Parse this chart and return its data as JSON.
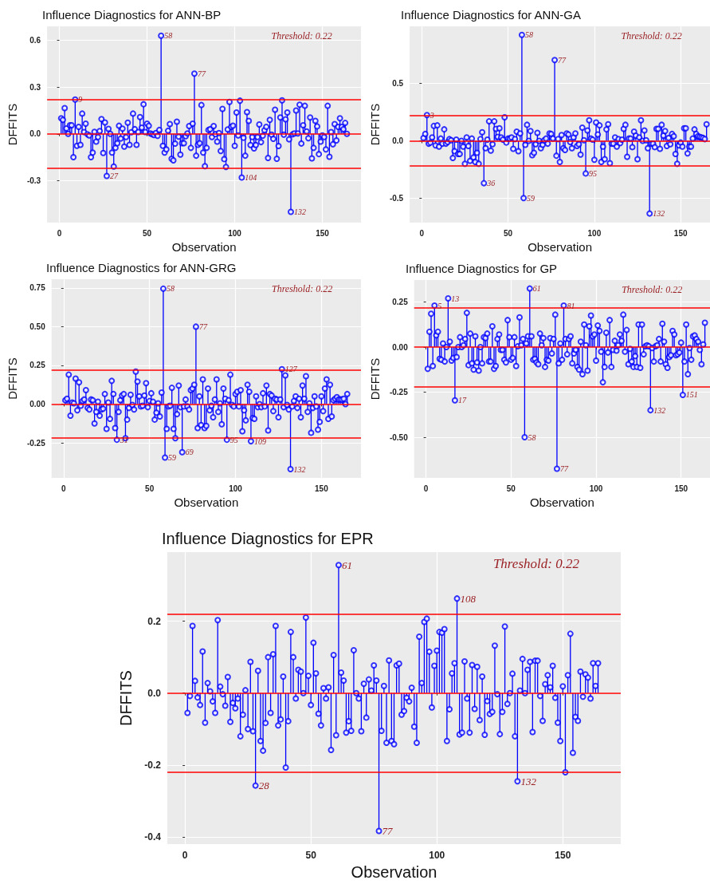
{
  "chart_data": [
    {
      "type": "lollipop",
      "title": "Influence Diagnostics for ANN-BP",
      "xlabel": "Observation",
      "ylabel": "DFFITS",
      "color": "#0000ff",
      "marker": "circle",
      "grid": true,
      "xlim": [
        -7,
        172
      ],
      "ylim": [
        -0.57,
        0.69
      ],
      "xticks": [
        0,
        50,
        100,
        150
      ],
      "yticks": [
        -0.3,
        {
          "value": 0,
          "label": "0.0"
        },
        0.3,
        0.6
      ],
      "ref_lines": [
        {
          "axis": "y",
          "value": 0.22,
          "color": "#ff0000"
        },
        {
          "axis": "y",
          "value": 0,
          "color": "#ff0000"
        },
        {
          "axis": "y",
          "value": -0.22,
          "color": "#ff0000"
        }
      ],
      "annotations": [
        "Threshold: 0.22",
        {
          "text": "58",
          "x": 58,
          "y": 0.63
        },
        {
          "text": "77",
          "x": 77,
          "y": 0.387
        },
        {
          "text": "9",
          "x": 9,
          "y": 0.22
        },
        {
          "text": "27",
          "x": 27,
          "y": -0.27
        },
        {
          "text": "104",
          "x": 104,
          "y": -0.28
        },
        {
          "text": "132",
          "x": 132,
          "y": -0.5
        }
      ],
      "x": [
        1,
        2,
        3,
        4,
        5,
        6,
        7,
        8,
        9,
        10,
        11,
        12,
        13,
        14,
        15,
        16,
        17,
        18,
        19,
        20,
        21,
        22,
        23,
        24,
        25,
        26,
        27,
        28,
        29,
        30,
        31,
        32,
        33,
        34,
        35,
        36,
        37,
        38,
        39,
        40,
        41,
        42,
        43,
        44,
        45,
        46,
        47,
        48,
        49,
        50,
        51,
        52,
        53,
        54,
        55,
        56,
        57,
        58,
        59,
        60,
        61,
        62,
        63,
        64,
        65,
        66,
        67,
        68,
        69,
        70,
        71,
        72,
        73,
        74,
        75,
        76,
        77,
        78,
        79,
        80,
        81,
        82,
        83,
        84,
        85,
        86,
        87,
        88,
        89,
        90,
        91,
        92,
        93,
        94,
        95,
        96,
        97,
        98,
        99,
        100,
        101,
        102,
        103,
        104,
        105,
        106,
        107,
        108,
        109,
        110,
        111,
        112,
        113,
        114,
        115,
        116,
        117,
        118,
        119,
        120,
        121,
        122,
        123,
        124,
        125,
        126,
        127,
        128,
        129,
        130,
        131,
        132,
        133,
        134,
        135,
        136,
        137,
        138,
        139,
        140,
        141,
        142,
        143,
        144,
        145,
        146,
        147,
        148,
        149,
        150,
        151,
        152,
        153,
        154,
        155,
        156,
        157,
        158,
        159,
        160,
        161,
        162,
        163,
        164
      ],
      "values": [
        0.1,
        0.09,
        0.165,
        0.035,
        0.0,
        0.055,
        0.055,
        -0.15,
        0.22,
        -0.077,
        0.045,
        -0.07,
        0.13,
        0.012,
        0.065,
        -0.003,
        -0.01,
        -0.15,
        -0.12,
        0.013,
        -0.05,
        -0.02,
        0.018,
        0.095,
        -0.123,
        0.073,
        -0.27,
        0.032,
        0.0,
        -0.12,
        -0.21,
        -0.09,
        -0.06,
        0.052,
        -0.03,
        0.033,
        -0.082,
        -0.02,
        0.072,
        -0.07,
        0.01,
        0.13,
        0.03,
        -0.07,
        0.012,
        0.108,
        0.04,
        0.19,
        0.012,
        0.065,
        0.052,
        0.002,
        -0.003,
        -0.008,
        0.005,
        -0.013,
        0.025,
        0.63,
        -0.077,
        -0.12,
        -0.1,
        0.02,
        0.063,
        -0.16,
        -0.17,
        -0.063,
        0.078,
        -0.018,
        -0.133,
        -0.06,
        -0.06,
        -0.015,
        0.003,
        0.05,
        -0.09,
        0.065,
        0.387,
        -0.14,
        -0.07,
        -0.06,
        0.185,
        -0.12,
        -0.207,
        -0.09,
        0.025,
        0.03,
        -0.02,
        0.05,
        -0.002,
        -0.05,
        0.005,
        -0.11,
        0.16,
        -0.162,
        -0.212,
        0.028,
        0.205,
        0.045,
        0.053,
        -0.077,
        0.137,
        -0.01,
        0.213,
        -0.28,
        -0.025,
        -0.14,
        0.14,
        0.083,
        -0.072,
        -0.02,
        -0.093,
        -0.072,
        -0.02,
        0.06,
        -0.053,
        -0.012,
        0.023,
        0.045,
        -0.155,
        0.09,
        -0.005,
        -0.032,
        0.155,
        -0.16,
        -0.078,
        0.105,
        0.215,
        -0.005,
        0.093,
        0.137,
        -0.035,
        -0.5,
        -0.003,
        0.003,
        0.15,
        0.003,
        0.187,
        -0.062,
        0.055,
        0.18,
        0.015,
        -0.028,
        0.105,
        -0.157,
        -0.09,
        0.083,
        0.048,
        -0.13,
        -0.05,
        -0.01,
        -0.02,
        -0.1,
        0.18,
        -0.147,
        0.012,
        -0.067,
        0.063,
        -0.042,
        0.045,
        0.1,
        0.045,
        0.03,
        0.07,
        0.0
      ]
    },
    {
      "type": "lollipop",
      "title": "Influence Diagnostics for ANN-GA",
      "xlabel": "Observation",
      "ylabel": "DFFITS",
      "color": "#0000ff",
      "marker": "circle",
      "grid": true,
      "xlim": [
        -7,
        167
      ],
      "ylim": [
        -0.715,
        1.0
      ],
      "xticks": [
        0,
        50,
        100,
        150
      ],
      "yticks": [
        -0.5,
        {
          "value": 0,
          "label": "0.0"
        },
        0.5
      ],
      "ref_lines": [
        {
          "axis": "y",
          "value": 0.22,
          "color": "#ff0000"
        },
        {
          "axis": "y",
          "value": 0,
          "color": "#ff0000"
        },
        {
          "axis": "y",
          "value": -0.22,
          "color": "#ff0000"
        }
      ],
      "annotations": [
        "Threshold: 0.22",
        {
          "text": "58",
          "x": 58,
          "y": 0.925
        },
        {
          "text": "77",
          "x": 77,
          "y": 0.705
        },
        {
          "text": "3",
          "x": 3,
          "y": 0.225
        },
        {
          "text": "36",
          "x": 36,
          "y": -0.37
        },
        {
          "text": "59",
          "x": 59,
          "y": -0.5
        },
        {
          "text": "95",
          "x": 95,
          "y": -0.285
        },
        {
          "text": "132",
          "x": 132,
          "y": -0.635
        }
      ],
      "x": [
        1,
        2,
        3,
        4,
        5,
        6,
        7,
        8,
        9,
        10,
        11,
        12,
        13,
        14,
        15,
        16,
        17,
        18,
        19,
        20,
        21,
        22,
        23,
        24,
        25,
        26,
        27,
        28,
        29,
        30,
        31,
        32,
        33,
        34,
        35,
        36,
        37,
        38,
        39,
        40,
        41,
        42,
        43,
        44,
        45,
        46,
        47,
        48,
        49,
        50,
        51,
        52,
        53,
        54,
        55,
        56,
        57,
        58,
        59,
        60,
        61,
        62,
        63,
        64,
        65,
        66,
        67,
        68,
        69,
        70,
        71,
        72,
        73,
        74,
        75,
        76,
        77,
        78,
        79,
        80,
        81,
        82,
        83,
        84,
        85,
        86,
        87,
        88,
        89,
        90,
        91,
        92,
        93,
        94,
        95,
        96,
        97,
        98,
        99,
        100,
        101,
        102,
        103,
        104,
        105,
        106,
        107,
        108,
        109,
        110,
        111,
        112,
        113,
        114,
        115,
        116,
        117,
        118,
        119,
        120,
        121,
        122,
        123,
        124,
        125,
        126,
        127,
        128,
        129,
        130,
        131,
        132,
        133,
        134,
        135,
        136,
        137,
        138,
        139,
        140,
        141,
        142,
        143,
        144,
        145,
        146,
        147,
        148,
        149,
        150,
        151,
        152,
        153,
        154,
        155,
        156,
        157,
        158,
        159,
        160,
        161,
        162,
        163,
        164,
        165
      ],
      "values": [
        0.025,
        0.06,
        0.225,
        -0.025,
        -0.015,
        0.03,
        0.13,
        -0.04,
        0.135,
        -0.05,
        0.02,
        -0.025,
        0.1,
        -0.025,
        -0.01,
        0.015,
        0.005,
        -0.15,
        -0.09,
        0.01,
        -0.115,
        -0.115,
        0.0,
        -0.05,
        -0.2,
        0.03,
        -0.045,
        -0.175,
        0.02,
        -0.145,
        -0.185,
        -0.105,
        -0.2,
        0.015,
        0.075,
        -0.37,
        -0.065,
        0.01,
        0.17,
        -0.085,
        -0.03,
        0.17,
        0.105,
        0.035,
        0.11,
        0.03,
        0.01,
        0.205,
        -0.015,
        0.02,
        0.02,
        0.03,
        -0.07,
        0.015,
        0.08,
        -0.09,
        0.065,
        0.925,
        -0.5,
        -0.035,
        0.14,
        0.0,
        0.085,
        -0.125,
        -0.105,
        -0.03,
        0.07,
        0.0,
        -0.065,
        -0.035,
        0.005,
        0.02,
        -0.025,
        0.065,
        0.06,
        0.02,
        0.705,
        -0.13,
        0.015,
        -0.185,
        0.05,
        -0.065,
        -0.08,
        0.065,
        0.055,
        -0.01,
        -0.065,
        0.03,
        0.065,
        -0.045,
        -0.03,
        -0.12,
        0.115,
        0.005,
        -0.285,
        0.09,
        0.18,
        0.02,
        0.01,
        -0.165,
        0.16,
        0.055,
        0.135,
        -0.185,
        -0.05,
        -0.16,
        0.1,
        0.145,
        -0.195,
        -0.025,
        -0.025,
        0.03,
        -0.05,
        0.015,
        -0.02,
        0.01,
        0.105,
        0.14,
        -0.14,
        0.02,
        0.02,
        -0.055,
        0.08,
        0.045,
        -0.16,
        0.03,
        0.18,
        0.0,
        0.09,
        0.005,
        -0.065,
        -0.635,
        -0.025,
        -0.025,
        -0.055,
        0.105,
        0.105,
        -0.07,
        0.14,
        0.045,
        0.085,
        -0.045,
        0.025,
        -0.03,
        0.06,
        0.04,
        -0.115,
        -0.2,
        -0.04,
        -0.015,
        -0.05,
        0.11,
        0.11,
        -0.11,
        -0.05,
        -0.05,
        0.02,
        0.1,
        0.06,
        0.04,
        0.035,
        0.03,
        0.025,
        0.015,
        0.145
      ]
    },
    {
      "type": "lollipop",
      "title": "Influence Diagnostics for ANN-GRG",
      "xlabel": "Observation",
      "ylabel": "DFFITS",
      "color": "#0000ff",
      "marker": "circle",
      "grid": true,
      "xlim": [
        -7,
        173
      ],
      "ylim": [
        -0.477,
        0.806
      ],
      "xticks": [
        0,
        50,
        100,
        150
      ],
      "yticks": [
        {
          "value": -0.25,
          "label": "-0.25"
        },
        {
          "value": 0,
          "label": "0.00"
        },
        {
          "value": 0.25,
          "label": "0.25"
        },
        {
          "value": 0.5,
          "label": "0.50"
        },
        {
          "value": 0.75,
          "label": "0.75"
        }
      ],
      "ref_lines": [
        {
          "axis": "y",
          "value": 0.22,
          "color": "#ff0000"
        },
        {
          "axis": "y",
          "value": 0,
          "color": "#ff0000"
        },
        {
          "axis": "y",
          "value": -0.22,
          "color": "#ff0000"
        }
      ],
      "annotations": [
        "Threshold: 0.22",
        {
          "text": "58",
          "x": 58,
          "y": 0.745
        },
        {
          "text": "77",
          "x": 77,
          "y": 0.5
        },
        {
          "text": "127",
          "x": 127,
          "y": 0.225
        },
        {
          "text": "31",
          "x": 31,
          "y": -0.23
        },
        {
          "text": "59",
          "x": 59,
          "y": -0.345
        },
        {
          "text": "69",
          "x": 69,
          "y": -0.31
        },
        {
          "text": "95",
          "x": 95,
          "y": -0.23
        },
        {
          "text": "109",
          "x": 109,
          "y": -0.24
        },
        {
          "text": "132",
          "x": 132,
          "y": -0.42
        }
      ],
      "x": [
        1,
        2,
        3,
        4,
        5,
        6,
        7,
        8,
        9,
        10,
        11,
        12,
        13,
        14,
        15,
        16,
        17,
        18,
        19,
        20,
        21,
        22,
        23,
        24,
        25,
        26,
        27,
        28,
        29,
        30,
        31,
        32,
        33,
        34,
        35,
        36,
        37,
        38,
        39,
        40,
        41,
        42,
        43,
        44,
        45,
        46,
        47,
        48,
        49,
        50,
        51,
        52,
        53,
        54,
        55,
        56,
        57,
        58,
        59,
        60,
        61,
        62,
        63,
        64,
        65,
        66,
        67,
        68,
        69,
        70,
        71,
        72,
        73,
        74,
        75,
        76,
        77,
        78,
        79,
        80,
        81,
        82,
        83,
        84,
        85,
        86,
        87,
        88,
        89,
        90,
        91,
        92,
        93,
        94,
        95,
        96,
        97,
        98,
        99,
        100,
        101,
        102,
        103,
        104,
        105,
        106,
        107,
        108,
        109,
        110,
        111,
        112,
        113,
        114,
        115,
        116,
        117,
        118,
        119,
        120,
        121,
        122,
        123,
        124,
        125,
        126,
        127,
        128,
        129,
        130,
        131,
        132,
        133,
        134,
        135,
        136,
        137,
        138,
        139,
        140,
        141,
        142,
        143,
        144,
        145,
        146,
        147,
        148,
        149,
        150,
        151,
        152,
        153,
        154,
        155,
        156,
        157,
        158,
        159,
        160,
        161,
        162,
        163,
        164,
        165
      ],
      "values": [
        0.025,
        0.035,
        0.19,
        -0.075,
        0.01,
        0.005,
        0.165,
        -0.04,
        0.14,
        -0.01,
        0.02,
        0.03,
        0.09,
        -0.025,
        -0.035,
        0.03,
        0.025,
        -0.125,
        -0.05,
        0.015,
        -0.075,
        -0.035,
        -0.03,
        0.065,
        -0.16,
        0.01,
        -0.095,
        0.15,
        0.065,
        -0.155,
        -0.23,
        -0.05,
        0.025,
        0.055,
        0.065,
        -0.22,
        -0.1,
        -0.025,
        0.06,
        -0.005,
        -0.035,
        0.21,
        0.145,
        0.05,
        -0.015,
        -0.01,
        0.055,
        0.135,
        -0.02,
        0.02,
        0.07,
        0.015,
        -0.1,
        -0.055,
        0.005,
        -0.08,
        0.075,
        0.745,
        -0.345,
        -0.16,
        -0.015,
        -0.01,
        0.105,
        -0.16,
        -0.22,
        -0.065,
        0.12,
        -0.02,
        -0.31,
        -0.015,
        0.03,
        -0.015,
        -0.035,
        0.09,
        0.1,
        0.125,
        0.5,
        -0.155,
        0.05,
        -0.135,
        0.16,
        -0.155,
        -0.14,
        0.1,
        -0.04,
        -0.01,
        -0.085,
        0.03,
        0.16,
        -0.05,
        0.005,
        -0.13,
        0.1,
        0.035,
        -0.23,
        0.025,
        0.19,
        -0.005,
        -0.015,
        0.065,
        0.08,
        -0.015,
        0.09,
        -0.175,
        -0.04,
        -0.105,
        0.125,
        0.08,
        -0.24,
        -0.09,
        -0.095,
        0.05,
        -0.02,
        0.0,
        -0.02,
        0.07,
        -0.015,
        0.12,
        -0.17,
        0.065,
        0.055,
        -0.045,
        0.035,
        0.03,
        -0.085,
        0.03,
        0.225,
        -0.02,
        0.185,
        -0.005,
        -0.035,
        -0.42,
        -0.015,
        0.02,
        0.05,
        -0.025,
        0.035,
        -0.085,
        0.12,
        0.035,
        0.18,
        -0.05,
        0.005,
        -0.185,
        -0.025,
        0.05,
        -0.015,
        -0.165,
        -0.115,
        0.05,
        -0.045,
        0.1,
        0.16,
        -0.095,
        0.125,
        -0.08,
        0.025,
        0.035,
        0.045,
        0.03,
        0.03,
        0.03,
        0.035,
        0.0,
        0.065
      ]
    },
    {
      "type": "lollipop",
      "title": "Influence Diagnostics for GP",
      "xlabel": "Observation",
      "ylabel": "DFFITS",
      "color": "#0000ff",
      "marker": "circle",
      "grid": true,
      "xlim": [
        -7,
        167
      ],
      "ylim": [
        -0.726,
        0.372
      ],
      "xticks": [
        0,
        50,
        100,
        150
      ],
      "yticks": [
        {
          "value": -0.5,
          "label": "-0.50"
        },
        {
          "value": -0.25,
          "label": "-0.25"
        },
        {
          "value": 0,
          "label": "0.00"
        },
        {
          "value": 0.25,
          "label": "0.25"
        }
      ],
      "ref_lines": [
        {
          "axis": "y",
          "value": 0.22,
          "color": "#ff0000"
        },
        {
          "axis": "y",
          "value": 0,
          "color": "#ff0000"
        },
        {
          "axis": "y",
          "value": -0.22,
          "color": "#ff0000"
        }
      ],
      "annotations": [
        "Threshold: 0.22",
        {
          "text": "61",
          "x": 61,
          "y": 0.325
        },
        {
          "text": "13",
          "x": 13,
          "y": 0.27
        },
        {
          "text": "5",
          "x": 5,
          "y": 0.23
        },
        {
          "text": "81",
          "x": 81,
          "y": 0.23
        },
        {
          "text": "17",
          "x": 17,
          "y": -0.295
        },
        {
          "text": "58",
          "x": 58,
          "y": -0.5
        },
        {
          "text": "77",
          "x": 77,
          "y": -0.675
        },
        {
          "text": "132",
          "x": 132,
          "y": -0.35
        },
        {
          "text": "151",
          "x": 151,
          "y": -0.265
        }
      ],
      "x": [
        1,
        2,
        3,
        4,
        5,
        6,
        7,
        8,
        9,
        10,
        11,
        12,
        13,
        14,
        15,
        16,
        17,
        18,
        19,
        20,
        21,
        22,
        23,
        24,
        25,
        26,
        27,
        28,
        29,
        30,
        31,
        32,
        33,
        34,
        35,
        36,
        37,
        38,
        39,
        40,
        41,
        42,
        43,
        44,
        45,
        46,
        47,
        48,
        49,
        50,
        51,
        52,
        53,
        54,
        55,
        56,
        57,
        58,
        59,
        60,
        61,
        62,
        63,
        64,
        65,
        66,
        67,
        68,
        69,
        70,
        71,
        72,
        73,
        74,
        75,
        76,
        77,
        78,
        79,
        80,
        81,
        82,
        83,
        84,
        85,
        86,
        87,
        88,
        89,
        90,
        91,
        92,
        93,
        94,
        95,
        96,
        97,
        98,
        99,
        100,
        101,
        102,
        103,
        104,
        105,
        106,
        107,
        108,
        109,
        110,
        111,
        112,
        113,
        114,
        115,
        116,
        117,
        118,
        119,
        120,
        121,
        122,
        123,
        124,
        125,
        126,
        127,
        128,
        129,
        130,
        131,
        132,
        133,
        134,
        135,
        136,
        137,
        138,
        139,
        140,
        141,
        142,
        143,
        144,
        145,
        146,
        147,
        148,
        149,
        150,
        151,
        152,
        153,
        154,
        155,
        156,
        157,
        158,
        159,
        160,
        161,
        162,
        163,
        164
      ],
      "values": [
        -0.12,
        0.085,
        0.185,
        -0.105,
        0.23,
        0.065,
        0.085,
        -0.065,
        -0.07,
        0.02,
        -0.08,
        0.0,
        0.27,
        0.03,
        -0.075,
        -0.06,
        -0.295,
        -0.055,
        0.0,
        0.055,
        0.0,
        0.01,
        0.045,
        0.19,
        -0.1,
        0.075,
        -0.09,
        -0.125,
        0.06,
        -0.085,
        -0.13,
        0.0,
        -0.09,
        0.055,
        0.05,
        0.075,
        -0.08,
        -0.08,
        0.115,
        -0.12,
        -0.105,
        0.045,
        0.07,
        -0.015,
        -0.015,
        -0.07,
        -0.085,
        0.15,
        0.055,
        -0.07,
        -0.06,
        0.055,
        -0.105,
        0.005,
        0.165,
        0.01,
        0.045,
        -0.5,
        0.02,
        0.06,
        0.325,
        0.06,
        -0.07,
        -0.065,
        -0.085,
        -0.095,
        0.075,
        0.01,
        0.05,
        -0.11,
        -0.07,
        -0.075,
        0.05,
        -0.035,
        0.045,
        0.18,
        -0.675,
        -0.09,
        0.02,
        -0.07,
        0.23,
        0.045,
        -0.04,
        0.045,
        0.06,
        -0.09,
        -0.035,
        -0.015,
        -0.11,
        -0.125,
        0.03,
        -0.15,
        0.125,
        0.01,
        -0.13,
        0.115,
        0.175,
        0.06,
        0.07,
        -0.075,
        0.12,
        0.09,
        -0.025,
        -0.195,
        -0.11,
        0.08,
        -0.03,
        0.15,
        -0.11,
        -0.015,
        0.035,
        -0.02,
        0.01,
        0.07,
        0.035,
        0.18,
        -0.025,
        0.095,
        -0.095,
        -0.01,
        -0.08,
        -0.11,
        -0.05,
        -0.11,
        0.125,
        -0.115,
        0.125,
        -0.04,
        0.005,
        0.01,
        0.005,
        -0.35,
        -0.005,
        -0.08,
        0.005,
        0.01,
        0.045,
        -0.08,
        0.13,
        0.03,
        -0.095,
        -0.115,
        -0.055,
        -0.045,
        0.09,
        0.07,
        -0.045,
        -0.04,
        -0.03,
        0.025,
        -0.265,
        -0.08,
        0.125,
        -0.15,
        -0.005,
        -0.07,
        0.06,
        0.065,
        0.045,
        0.03,
        -0.015,
        -0.095,
        0.015,
        0.135
      ]
    },
    {
      "type": "lollipop",
      "title": "Influence Diagnostics for EPR",
      "xlabel": "Observation",
      "ylabel": "DFFITS",
      "color": "#0000ff",
      "marker": "circle",
      "grid": true,
      "xlim": [
        -7,
        173
      ],
      "ylim": [
        -0.42,
        0.392
      ],
      "xticks": [
        0,
        50,
        100,
        150
      ],
      "yticks": [
        -0.4,
        -0.2,
        {
          "value": 0,
          "label": "0.0"
        },
        0.2
      ],
      "ref_lines": [
        {
          "axis": "y",
          "value": 0.22,
          "color": "#ff0000"
        },
        {
          "axis": "y",
          "value": 0,
          "color": "#ff0000"
        },
        {
          "axis": "y",
          "value": -0.22,
          "color": "#ff0000"
        }
      ],
      "annotations": [
        "Threshold: 0.22",
        {
          "text": "61",
          "x": 61,
          "y": 0.356
        },
        {
          "text": "108",
          "x": 108,
          "y": 0.263
        },
        {
          "text": "28",
          "x": 28,
          "y": -0.257
        },
        {
          "text": "77",
          "x": 77,
          "y": -0.383
        },
        {
          "text": "132",
          "x": 132,
          "y": -0.245
        }
      ],
      "x": [
        1,
        2,
        3,
        4,
        5,
        6,
        7,
        8,
        9,
        10,
        11,
        12,
        13,
        14,
        15,
        16,
        17,
        18,
        19,
        20,
        21,
        22,
        23,
        24,
        25,
        26,
        27,
        28,
        29,
        30,
        31,
        32,
        33,
        34,
        35,
        36,
        37,
        38,
        39,
        40,
        41,
        42,
        43,
        44,
        45,
        46,
        47,
        48,
        49,
        50,
        51,
        52,
        53,
        54,
        55,
        56,
        57,
        58,
        59,
        60,
        61,
        62,
        63,
        64,
        65,
        66,
        67,
        68,
        69,
        70,
        71,
        72,
        73,
        74,
        75,
        76,
        77,
        78,
        79,
        80,
        81,
        82,
        83,
        84,
        85,
        86,
        87,
        88,
        89,
        90,
        91,
        92,
        93,
        94,
        95,
        96,
        97,
        98,
        99,
        100,
        101,
        102,
        103,
        104,
        105,
        106,
        107,
        108,
        109,
        110,
        111,
        112,
        113,
        114,
        115,
        116,
        117,
        118,
        119,
        120,
        121,
        122,
        123,
        124,
        125,
        126,
        127,
        128,
        129,
        130,
        131,
        132,
        133,
        134,
        135,
        136,
        137,
        138,
        139,
        140,
        141,
        142,
        143,
        144,
        145,
        146,
        147,
        148,
        149,
        150,
        151,
        152,
        153,
        154,
        155,
        156,
        157,
        158,
        159,
        160,
        161,
        162,
        163,
        164
      ],
      "values": [
        -0.055,
        -0.008,
        0.187,
        0.034,
        -0.012,
        -0.033,
        0.116,
        -0.082,
        0.028,
        0.005,
        -0.023,
        -0.055,
        0.203,
        0.018,
        -0.003,
        -0.035,
        0.045,
        -0.08,
        -0.027,
        -0.042,
        -0.015,
        -0.12,
        -0.06,
        0.008,
        -0.1,
        0.087,
        -0.106,
        -0.257,
        0.062,
        -0.133,
        -0.16,
        -0.083,
        0.1,
        -0.055,
        0.108,
        0.187,
        -0.09,
        -0.073,
        0.046,
        -0.207,
        -0.078,
        0.17,
        0.1,
        -0.015,
        0.065,
        0.06,
        0.0,
        0.21,
        0.048,
        -0.033,
        0.14,
        0.055,
        -0.057,
        -0.09,
        0.014,
        -0.015,
        0.016,
        -0.158,
        0.106,
        -0.117,
        0.356,
        0.057,
        0.035,
        -0.11,
        -0.078,
        -0.105,
        0.119,
        0.0,
        -0.015,
        -0.106,
        0.026,
        -0.068,
        0.038,
        0.007,
        0.077,
        0.035,
        -0.383,
        -0.105,
        0.02,
        -0.138,
        0.091,
        -0.133,
        -0.142,
        0.077,
        0.082,
        -0.06,
        -0.05,
        -0.013,
        -0.023,
        0.015,
        -0.093,
        -0.138,
        0.157,
        0.028,
        0.198,
        0.207,
        0.115,
        -0.04,
        0.076,
        0.118,
        0.17,
        0.168,
        0.178,
        -0.133,
        -0.045,
        0.055,
        0.083,
        0.263,
        -0.115,
        -0.11,
        0.088,
        -0.015,
        -0.11,
        0.078,
        -0.044,
        0.073,
        -0.075,
        0.046,
        -0.116,
        -0.022,
        -0.058,
        -0.052,
        0.132,
        -0.003,
        -0.114,
        -0.052,
        0.185,
        -0.03,
        0.0,
        0.054,
        -0.12,
        -0.245,
        0.007,
        0.095,
        0.0,
        0.065,
        0.087,
        -0.108,
        0.09,
        0.09,
        -0.008,
        -0.077,
        0.025,
        0.05,
        0.016,
        0.076,
        -0.013,
        -0.082,
        -0.133,
        0.019,
        -0.22,
        0.05,
        0.165,
        -0.166,
        -0.066,
        -0.077,
        0.06,
        -0.01,
        0.052,
        0.043,
        -0.015,
        0.083,
        0.02,
        0.083
      ]
    }
  ]
}
